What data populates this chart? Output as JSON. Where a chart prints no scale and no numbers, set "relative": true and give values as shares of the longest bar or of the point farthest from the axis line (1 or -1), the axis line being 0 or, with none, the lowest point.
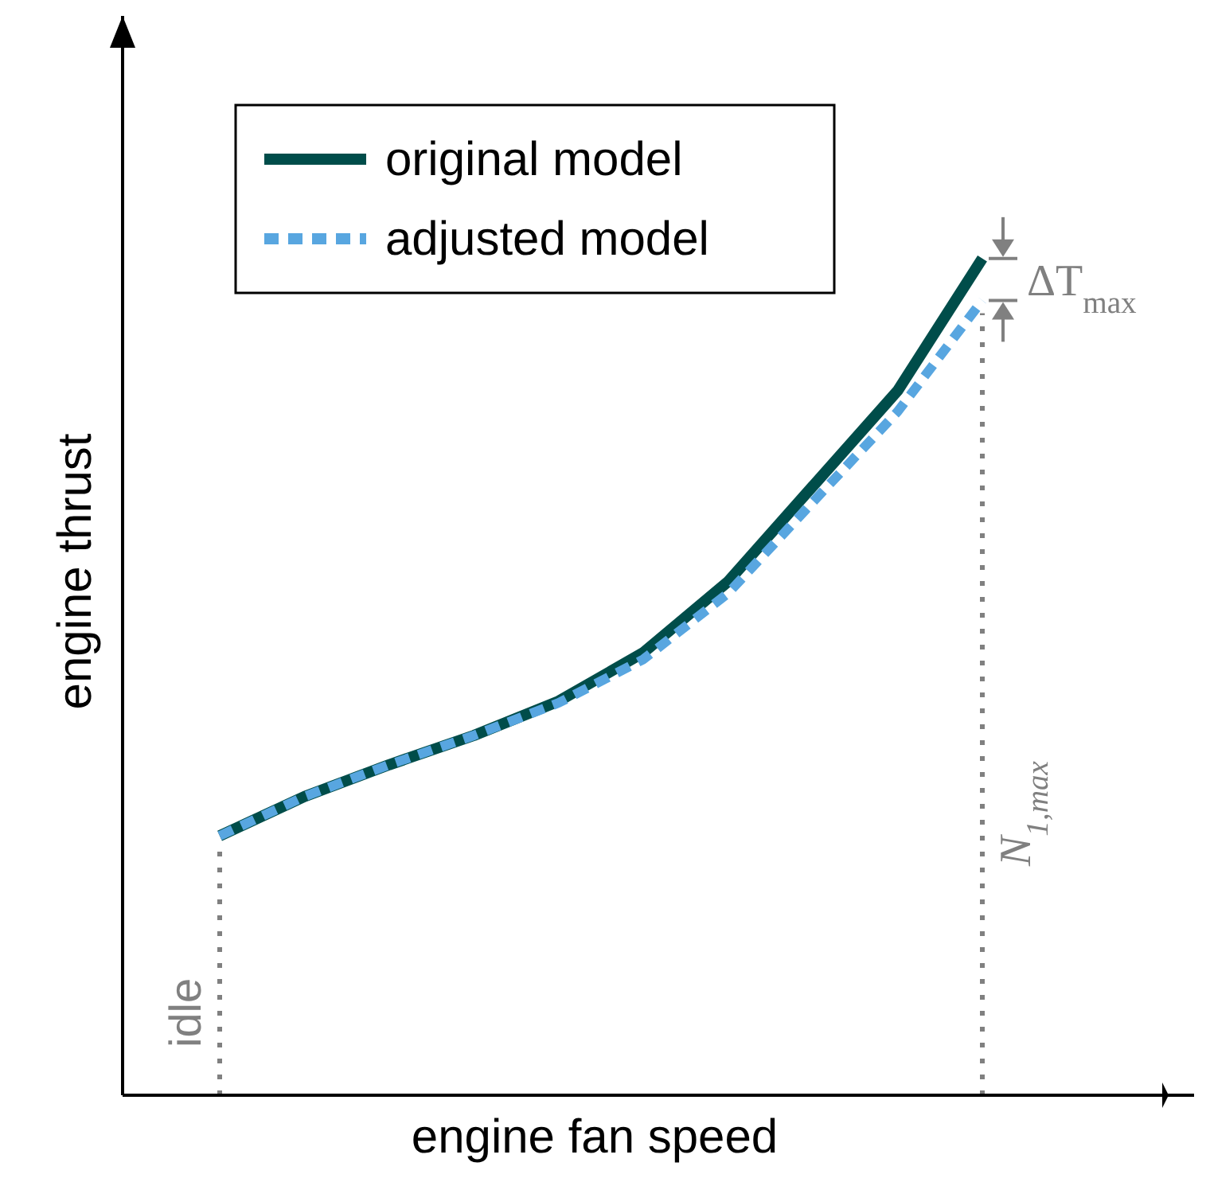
{
  "chart_data": {
    "type": "line",
    "relative": true,
    "xlabel": "engine fan speed",
    "ylabel": "engine thrust",
    "legend": "top left",
    "categories": [
      null,
      null,
      null,
      null,
      null,
      null,
      null,
      null,
      null,
      null
    ],
    "series": [
      {
        "name": "original model",
        "color": "#004d4a",
        "line_style": "solid",
        "values": [
          0.31,
          0.357,
          0.395,
          0.43,
          0.471,
          0.529,
          0.614,
          0.728,
          0.842,
          1
        ]
      },
      {
        "name": "adjusted model",
        "color": "#58a6e0",
        "line_style": "dashed",
        "values": [
          0.31,
          0.357,
          0.395,
          0.43,
          0.469,
          0.521,
          0.6,
          0.709,
          0.817,
          0.95
        ]
      }
    ],
    "annotations": [
      "idle",
      "N$_{1,max}$",
      "ΔT$_{max}$"
    ]
  }
}
